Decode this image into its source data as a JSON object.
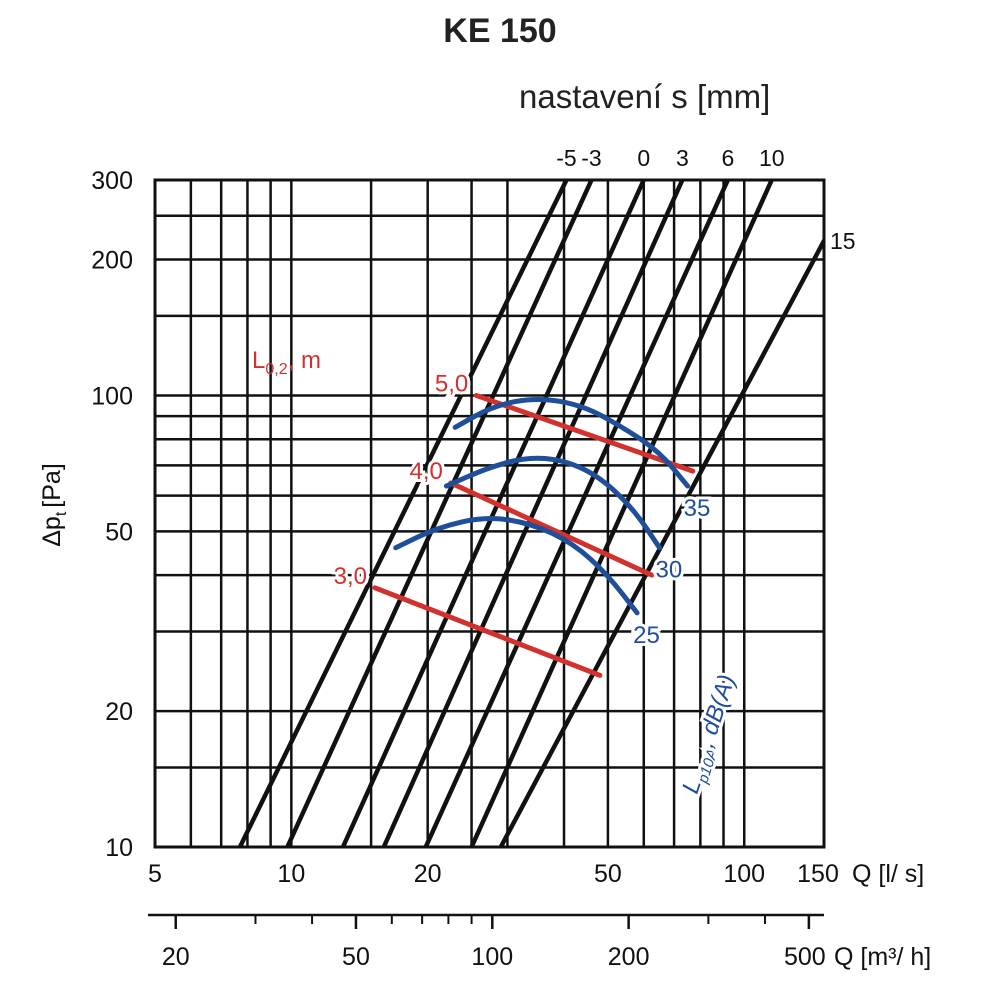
{
  "chart_data": {
    "type": "line",
    "title": "KE 150",
    "setting_axis_label": "nastavení s [mm]",
    "setting_top_labels": [
      "-5",
      "-3",
      "0",
      "3",
      "6",
      "10"
    ],
    "setting_right_label": "15",
    "x_axis": {
      "label": "Q [l/ s]",
      "scale": "log",
      "range": [
        5,
        150
      ],
      "tick_labels": [
        "5",
        "10",
        "20",
        "50",
        "100",
        "150"
      ],
      "tick_values": [
        5,
        10,
        20,
        50,
        100,
        150
      ],
      "grid_values": [
        5,
        6,
        7,
        8,
        9,
        10,
        15,
        20,
        25,
        30,
        40,
        50,
        60,
        70,
        80,
        90,
        100,
        150
      ]
    },
    "x2_axis": {
      "label": "Q [m³/ h]",
      "scale": "log",
      "tick_labels": [
        "20",
        "50",
        "100",
        "200",
        "500"
      ],
      "tick_values": [
        20,
        50,
        100,
        200,
        500
      ],
      "minor_values": [
        30,
        40,
        60,
        70,
        80,
        90,
        300,
        400
      ]
    },
    "y_axis": {
      "label_main": "Δp",
      "label_sub": "t",
      "label_unit": "[Pa]",
      "scale": "log",
      "range": [
        10,
        300
      ],
      "tick_labels": [
        "10",
        "20",
        "50",
        "100",
        "200",
        "300"
      ],
      "tick_values": [
        10,
        20,
        50,
        100,
        200,
        300
      ],
      "grid_values": [
        10,
        15,
        20,
        30,
        40,
        50,
        60,
        70,
        80,
        90,
        100,
        150,
        200,
        250,
        300
      ]
    },
    "grid": true,
    "setting_lines": [
      {
        "s": "-5",
        "points": [
          [
            7.7,
            10
          ],
          [
            40.5,
            300
          ]
        ]
      },
      {
        "s": "-3",
        "points": [
          [
            9.8,
            10
          ],
          [
            46,
            300
          ]
        ]
      },
      {
        "s": "0",
        "points": [
          [
            13,
            10
          ],
          [
            60,
            300
          ]
        ]
      },
      {
        "s": "3",
        "points": [
          [
            16,
            10
          ],
          [
            73,
            300
          ]
        ]
      },
      {
        "s": "6",
        "points": [
          [
            19.8,
            10
          ],
          [
            92,
            300
          ]
        ]
      },
      {
        "s": "10",
        "points": [
          [
            25,
            10
          ],
          [
            115,
            300
          ]
        ]
      },
      {
        "s": "15",
        "points": [
          [
            29,
            10
          ],
          [
            150,
            220
          ]
        ]
      }
    ],
    "throw_label": "L",
    "throw_label_sub": "0,2",
    "throw_label_unit": ", m",
    "throw_lines": [
      {
        "label": "5,0",
        "points": [
          [
            25.6,
            100
          ],
          [
            77,
            68
          ]
        ]
      },
      {
        "label": "4,0",
        "points": [
          [
            22.5,
            64
          ],
          [
            62.5,
            40
          ]
        ]
      },
      {
        "label": "3,0",
        "points": [
          [
            15.3,
            37.5
          ],
          [
            48,
            24
          ]
        ]
      }
    ],
    "noise_label": "L",
    "noise_label_sub": "p10A",
    "noise_label_unit": ", dB(A)",
    "noise_curves": [
      {
        "label": "35",
        "points": [
          [
            23,
            85
          ],
          [
            28,
            95
          ],
          [
            35,
            99
          ],
          [
            44,
            95
          ],
          [
            54,
            85
          ],
          [
            65,
            75
          ],
          [
            75,
            63
          ]
        ]
      },
      {
        "label": "30",
        "points": [
          [
            22,
            63
          ],
          [
            27,
            69
          ],
          [
            33,
            73
          ],
          [
            40,
            72
          ],
          [
            48,
            66
          ],
          [
            57,
            56
          ],
          [
            65,
            46
          ]
        ]
      },
      {
        "label": "25",
        "points": [
          [
            17,
            46
          ],
          [
            21,
            51
          ],
          [
            27,
            54
          ],
          [
            34,
            52
          ],
          [
            42,
            47
          ],
          [
            50,
            40
          ],
          [
            58,
            33
          ]
        ]
      }
    ],
    "colors": {
      "grid": "#111111",
      "setting_lines": "#111111",
      "throw_lines": "#d3312e",
      "noise_curves": "#1f4f9a"
    }
  }
}
